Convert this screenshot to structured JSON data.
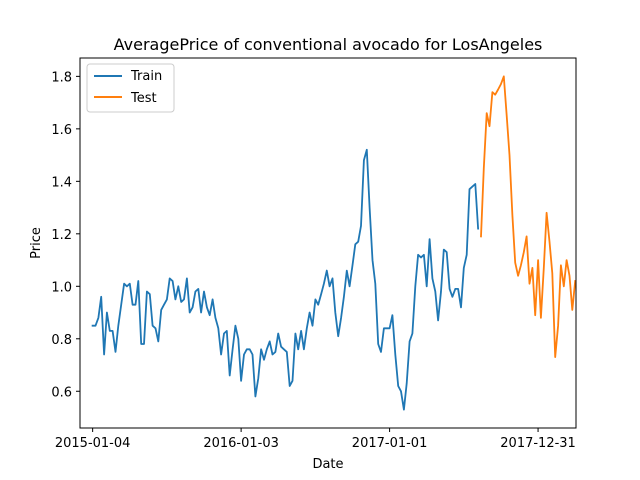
{
  "chart_data": {
    "type": "line",
    "title": "AveragePrice of conventional avocado for LosAngeles",
    "xlabel": "Date",
    "ylabel": "Price",
    "x_ticks": [
      "2015-01-04",
      "2016-01-03",
      "2017-01-01",
      "2017-12-31"
    ],
    "y_ticks": [
      "0.6",
      "0.8",
      "1.0",
      "1.2",
      "1.4",
      "1.6",
      "1.8"
    ],
    "ylim": [
      0.46,
      1.87
    ],
    "xlim": [
      "2014-12-04",
      "2018-04-03"
    ],
    "legend_position": "upper-left",
    "grid": false,
    "series": [
      {
        "name": "Train",
        "color": "#1f77b4",
        "start_date": "2015-01-04",
        "interval_days": 7,
        "values": [
          0.85,
          0.85,
          0.88,
          0.96,
          0.74,
          0.9,
          0.83,
          0.83,
          0.75,
          0.85,
          0.93,
          1.01,
          1.0,
          1.01,
          0.93,
          0.93,
          1.02,
          0.78,
          0.78,
          0.98,
          0.97,
          0.85,
          0.84,
          0.79,
          0.91,
          0.93,
          0.95,
          1.03,
          1.02,
          0.95,
          1.0,
          0.94,
          0.95,
          1.03,
          0.9,
          0.92,
          0.98,
          0.99,
          0.9,
          0.98,
          0.92,
          0.89,
          0.95,
          0.88,
          0.84,
          0.74,
          0.82,
          0.83,
          0.66,
          0.76,
          0.85,
          0.8,
          0.64,
          0.74,
          0.76,
          0.76,
          0.74,
          0.58,
          0.65,
          0.76,
          0.72,
          0.76,
          0.79,
          0.74,
          0.75,
          0.82,
          0.77,
          0.76,
          0.75,
          0.62,
          0.64,
          0.82,
          0.76,
          0.83,
          0.76,
          0.84,
          0.9,
          0.85,
          0.95,
          0.93,
          0.97,
          1.01,
          1.06,
          1.0,
          1.03,
          0.9,
          0.81,
          0.88,
          0.96,
          1.06,
          1.0,
          1.08,
          1.16,
          1.17,
          1.23,
          1.48,
          1.52,
          1.3,
          1.1,
          1.01,
          0.78,
          0.75,
          0.84,
          0.84,
          0.84,
          0.89,
          0.74,
          0.62,
          0.6,
          0.53,
          0.63,
          0.79,
          0.82,
          1.0,
          1.12,
          1.11,
          1.12,
          1.0,
          1.18,
          1.03,
          0.98,
          0.87,
          0.98,
          1.14,
          1.13,
          0.99,
          0.96,
          0.99,
          0.99,
          0.92,
          1.07,
          1.12,
          1.37,
          1.38,
          1.39,
          1.22
        ]
      },
      {
        "name": "Test",
        "color": "#ff7f0e",
        "start_date": "2017-08-13",
        "interval_days": 7,
        "values": [
          1.19,
          1.45,
          1.66,
          1.61,
          1.74,
          1.73,
          1.75,
          1.77,
          1.8,
          1.65,
          1.5,
          1.27,
          1.09,
          1.04,
          1.08,
          1.13,
          1.19,
          1.01,
          1.07,
          0.89,
          1.1,
          0.88,
          1.07,
          1.28,
          1.17,
          1.05,
          0.73,
          0.85,
          1.08,
          1.0,
          1.1,
          1.04,
          0.91,
          1.02
        ]
      }
    ]
  }
}
